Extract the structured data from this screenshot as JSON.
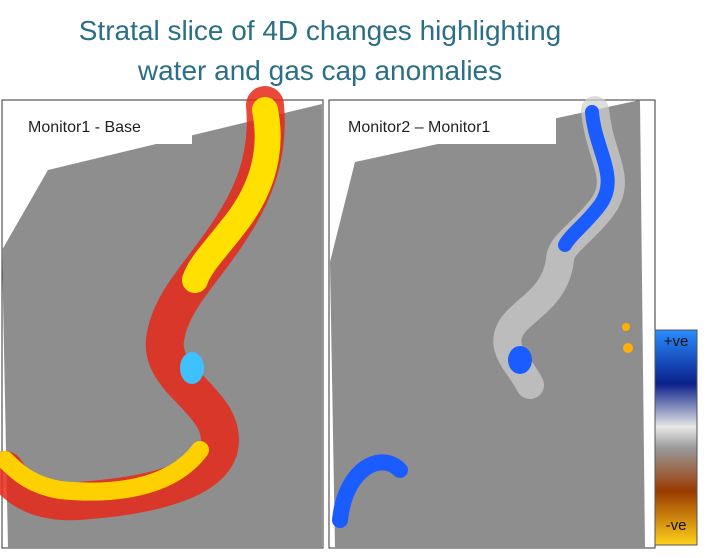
{
  "title": [
    "Stratal slice of 4D changes highlighting",
    "water and gas cap anomalies"
  ],
  "panels": [
    {
      "label": "Monitor1 - Base"
    },
    {
      "label": "Monitor2 – Monitor1"
    }
  ],
  "colorbar": {
    "top_label": "+ve",
    "bottom_label": "-ve"
  }
}
